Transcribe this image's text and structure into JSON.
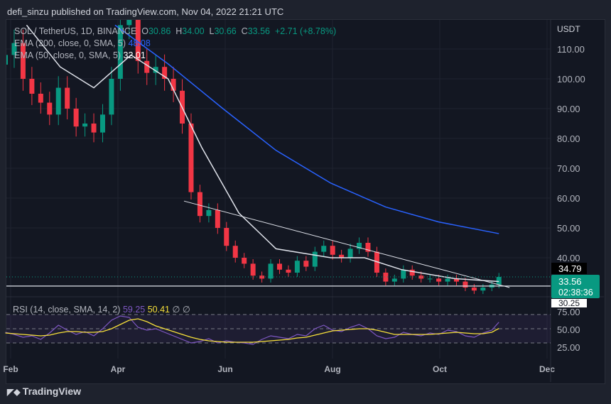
{
  "header": {
    "published": "defi_sinzu published on TradingView.com, Nov 04, 2022 21:21 UTC"
  },
  "legend": {
    "symbol": "SOL / TetherUS, 1D, BINANCE",
    "o_label": "O",
    "o": "30.86",
    "h_label": "H",
    "h": "34.00",
    "l_label": "L",
    "l": "30.66",
    "c_label": "C",
    "c": "33.56",
    "change": "+2.71 (+8.78%)",
    "ema200": "EMA (200, close, 0, SMA, 5)",
    "ema200_val": "48.08",
    "ema50": "EMA (50, close, 0, SMA, 5)",
    "ema50_val": "32.01",
    "rsi": "RSI (14, close, SMA, 14, 2)",
    "rsi_val": "59.25",
    "rsi_ma": "50.41",
    "rsi_extra": "∅ ∅"
  },
  "footer": {
    "brand": "TradingView",
    "logo": "tradingview-logo"
  },
  "colors": {
    "up": "#089981",
    "down": "#f23645",
    "ema200": "#2962ff",
    "ema50": "#e0e3eb",
    "rsi": "#7e57c2",
    "rsi_ma": "#f7e03a"
  },
  "chart_data": [
    {
      "type": "candlestick",
      "currency": "USDT",
      "ylim": [
        28,
        118
      ],
      "y_ticks": [
        "110.00",
        "100.00",
        "90.00",
        "80.00",
        "70.00",
        "60.00",
        "50.00",
        "40.00"
      ],
      "x_ticks": [
        "Feb",
        "Apr",
        "Jun",
        "Aug",
        "Oct",
        "Dec"
      ],
      "price_labels": {
        "high": "34.79",
        "last": "33.56",
        "countdown": "02:38:36",
        "low": "30.25"
      },
      "dates": [
        "Jan 29",
        "Feb 3",
        "Feb 8",
        "Feb 13",
        "Feb 18",
        "Feb 23",
        "Feb 28",
        "Mar 5",
        "Mar 10",
        "Mar 15",
        "Mar 20",
        "Mar 25",
        "Mar 30",
        "Apr 4",
        "Apr 9",
        "Apr 14",
        "Apr 19",
        "Apr 24",
        "Apr 29",
        "May 4",
        "May 9",
        "May 14",
        "May 19",
        "May 24",
        "May 29",
        "Jun 3",
        "Jun 8",
        "Jun 13",
        "Jun 18",
        "Jun 23",
        "Jun 28",
        "Jul 3",
        "Jul 8",
        "Jul 13",
        "Jul 18",
        "Jul 23",
        "Jul 28",
        "Aug 2",
        "Aug 7",
        "Aug 12",
        "Aug 17",
        "Aug 22",
        "Aug 27",
        "Sep 1",
        "Sep 6",
        "Sep 11",
        "Sep 16",
        "Sep 21",
        "Sep 26",
        "Oct 1",
        "Oct 6",
        "Oct 11",
        "Oct 16",
        "Oct 21",
        "Oct 26",
        "Oct 31",
        "Nov 4"
      ],
      "close": [
        108,
        112,
        100,
        95,
        92,
        88,
        97,
        90,
        84,
        85,
        82,
        88,
        100,
        118,
        120,
        106,
        102,
        104,
        100,
        96,
        85,
        62,
        54,
        56,
        50,
        44,
        40,
        38,
        34,
        33,
        38,
        36,
        35,
        39,
        37,
        42,
        44,
        41,
        40,
        43,
        45,
        42,
        35,
        32,
        33,
        36,
        34,
        33,
        33,
        32,
        33,
        32,
        30,
        29,
        30,
        31,
        33.56
      ],
      "ema200": {
        "dates": [
          "Apr 1",
          "May 1",
          "Jun 1",
          "Jul 1",
          "Aug 1",
          "Sep 1",
          "Oct 1",
          "Nov 4"
        ],
        "values": [
          118,
          105,
          90,
          76,
          65,
          57,
          52,
          48.08
        ]
      },
      "ema50": {
        "dates": [
          "Feb 10",
          "Mar 1",
          "Mar 20",
          "Apr 10",
          "May 1",
          "May 20",
          "Jun 10",
          "Jul 1",
          "Aug 1",
          "Aug 20",
          "Sep 10",
          "Oct 10",
          "Nov 4"
        ],
        "values": [
          118,
          104,
          97,
          108,
          100,
          77,
          55,
          43,
          40,
          40,
          36,
          33,
          32.01
        ]
      },
      "trendline": {
        "from": [
          "May 10",
          59
        ],
        "to": [
          "Nov 10",
          30
        ]
      },
      "support": 30.5
    },
    {
      "type": "line",
      "title": "RSI (14, close, SMA, 14, 2)",
      "y_ticks": [
        "75.00",
        "50.00",
        "25.00"
      ],
      "bands": [
        70,
        50,
        30
      ],
      "rsi": [
        45,
        42,
        38,
        40,
        35,
        44,
        55,
        48,
        42,
        46,
        40,
        50,
        62,
        68,
        66,
        52,
        48,
        50,
        45,
        40,
        35,
        30,
        32,
        36,
        30,
        33,
        31,
        30,
        28,
        35,
        40,
        38,
        36,
        42,
        40,
        50,
        55,
        48,
        46,
        52,
        56,
        50,
        40,
        36,
        38,
        45,
        42,
        40,
        44,
        42,
        48,
        46,
        40,
        38,
        44,
        48,
        59.25
      ],
      "rsi_ma": [
        44,
        43,
        42,
        41,
        40,
        41,
        44,
        46,
        46,
        45,
        45,
        46,
        50,
        56,
        62,
        64,
        60,
        54,
        50,
        46,
        42,
        38,
        35,
        33,
        32,
        31,
        31,
        31,
        31,
        32,
        33,
        34,
        35,
        37,
        38,
        41,
        44,
        47,
        48,
        49,
        50,
        50,
        48,
        45,
        42,
        42,
        42,
        42,
        42,
        43,
        44,
        45,
        44,
        43,
        43,
        45,
        50.41
      ]
    }
  ]
}
